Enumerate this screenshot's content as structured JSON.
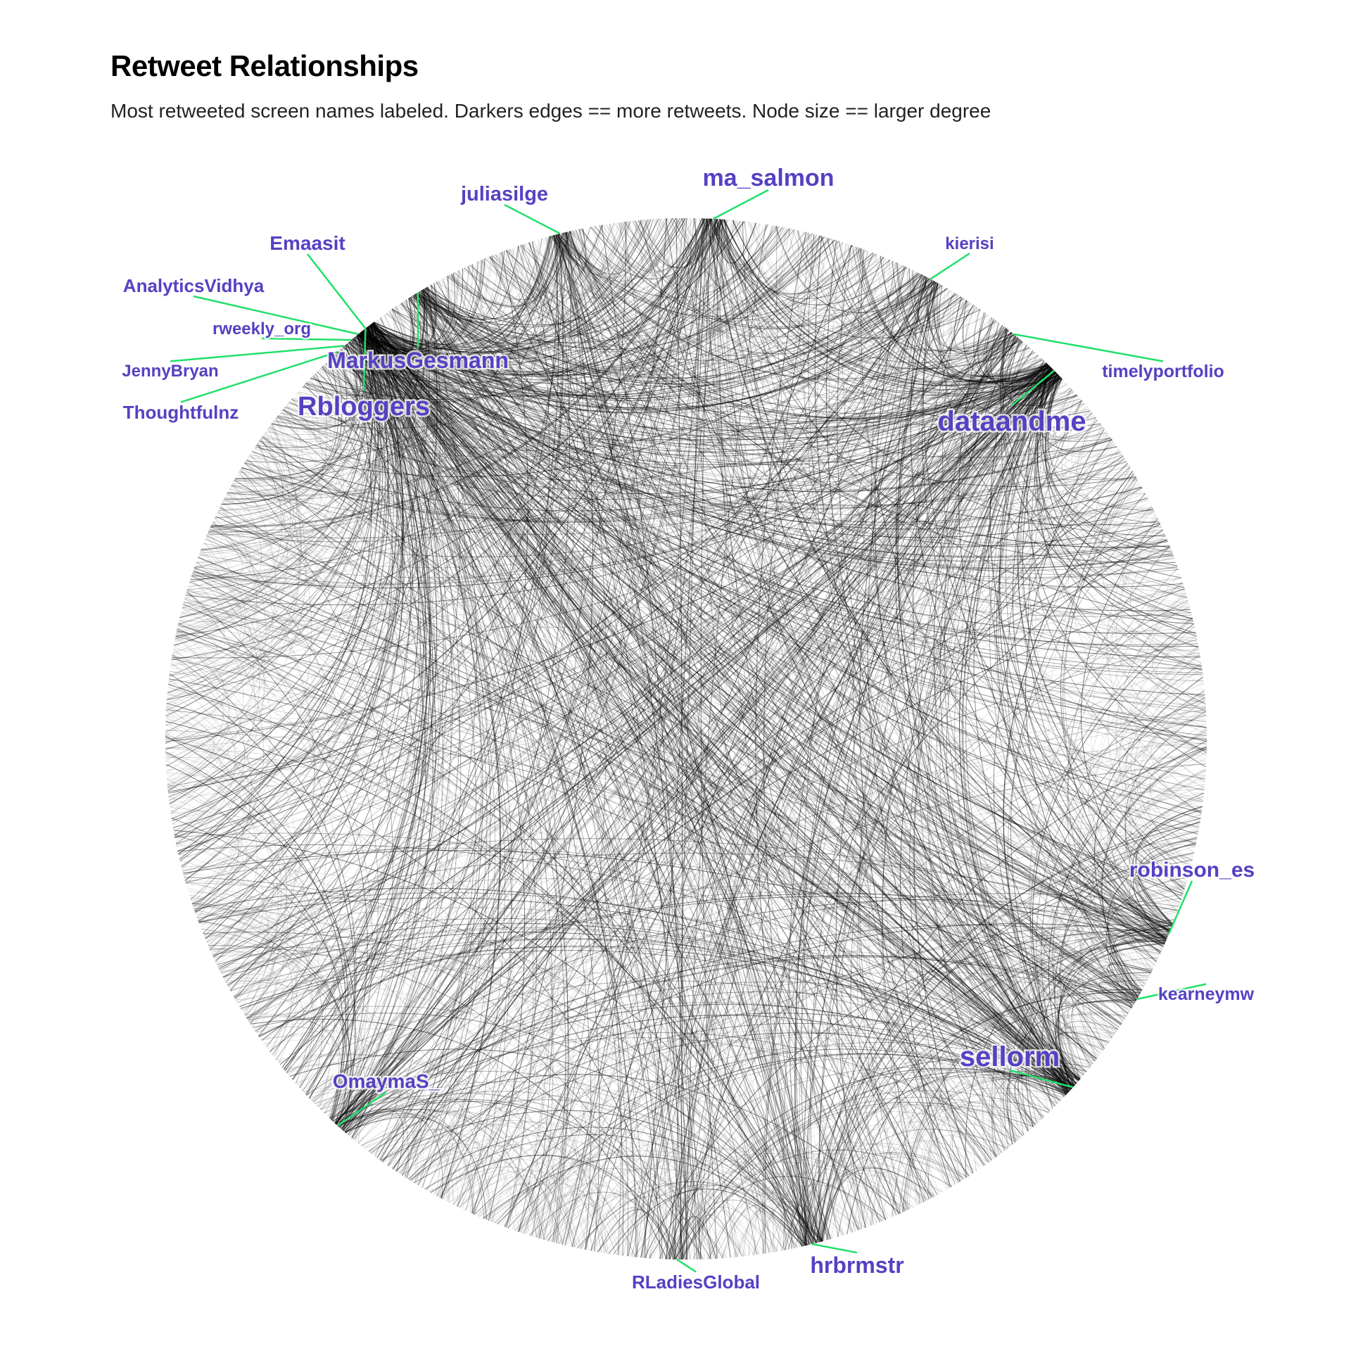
{
  "title": "Retweet Relationships",
  "subtitle": "Most retweeted screen names labeled. Darkers edges == more retweets. Node size == larger degree",
  "colors": {
    "label": "#5541c3",
    "leader": "#22e06a",
    "edge": "#000000",
    "background": "#ffffff"
  },
  "labeled_nodes": [
    {
      "name": "ma_salmon",
      "size": "large"
    },
    {
      "name": "juliasilge",
      "size": "medium"
    },
    {
      "name": "Emaasit",
      "size": "medium"
    },
    {
      "name": "AnalyticsVidhya",
      "size": "medium"
    },
    {
      "name": "rweekly_org",
      "size": "small"
    },
    {
      "name": "JennyBryan",
      "size": "small"
    },
    {
      "name": "Thoughtfulnz",
      "size": "medium"
    },
    {
      "name": "MarkusGesmann",
      "size": "large"
    },
    {
      "name": "Rbloggers",
      "size": "xlarge"
    },
    {
      "name": "kierisi",
      "size": "small"
    },
    {
      "name": "timelyportfolio",
      "size": "small"
    },
    {
      "name": "dataandme",
      "size": "xlarge"
    },
    {
      "name": "robinson_es",
      "size": "medium"
    },
    {
      "name": "kearneymw",
      "size": "small"
    },
    {
      "name": "sellorm",
      "size": "xlarge"
    },
    {
      "name": "OmaymaS_",
      "size": "medium"
    },
    {
      "name": "hrbrmstr",
      "size": "large"
    },
    {
      "name": "RLadiesGlobal",
      "size": "small"
    }
  ]
}
